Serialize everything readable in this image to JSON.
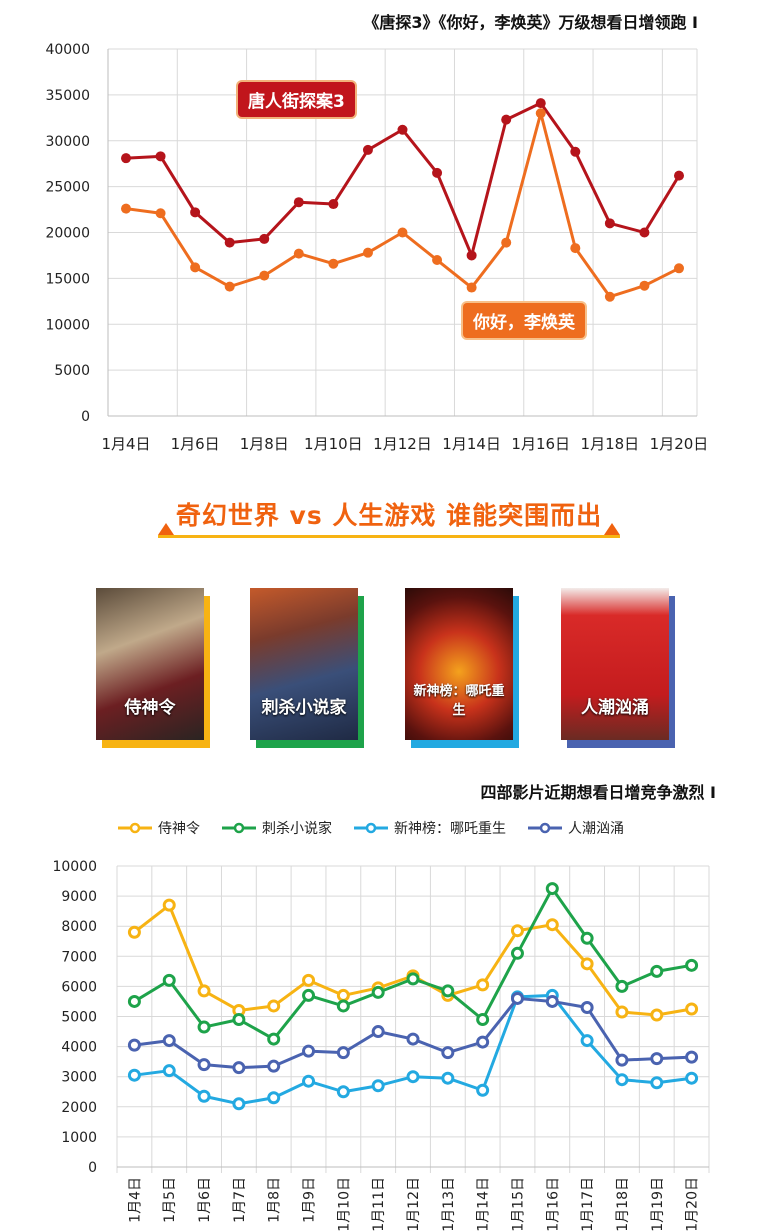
{
  "top": {
    "title": "《唐探3》《你好，李焕英》万级想看日增领跑 I",
    "chip_tang": "唐人街探案3",
    "chip_ni": "你好，李焕英"
  },
  "banner": {
    "text": "奇幻世界 vs 人生游戏 谁能突围而出",
    "accent": "#f0620f",
    "line_color": "#f7b313"
  },
  "posters": [
    {
      "name": "侍神令",
      "color": "#f7b313"
    },
    {
      "name": "刺杀小说家",
      "color": "#1ea34a"
    },
    {
      "name": "新神榜：哪吒重生",
      "color": "#23a9e1"
    },
    {
      "name": "人潮汹涌",
      "color": "#4a63b0"
    }
  ],
  "bottom": {
    "title": "四部影片近期想看日增竞争激烈 I"
  },
  "chart_data": [
    {
      "type": "line",
      "title": "《唐探3》《你好，李焕英》万级想看日增领跑 I",
      "x": [
        "1月4日",
        "1月5日",
        "1月6日",
        "1月7日",
        "1月8日",
        "1月9日",
        "1月10日",
        "1月11日",
        "1月12日",
        "1月13日",
        "1月14日",
        "1月15日",
        "1月16日",
        "1月17日",
        "1月18日",
        "1月19日",
        "1月20日"
      ],
      "x_tick_labels": [
        "1月4日",
        "1月6日",
        "1月8日",
        "1月10日",
        "1月12日",
        "1月14日",
        "1月16日",
        "1月18日",
        "1月20日"
      ],
      "ylim": [
        0,
        40000
      ],
      "yticks": [
        0,
        5000,
        10000,
        15000,
        20000,
        25000,
        30000,
        35000,
        40000
      ],
      "grid": true,
      "series": [
        {
          "name": "唐人街探案3",
          "color": "#b5141b",
          "values": [
            28100,
            28300,
            22200,
            18900,
            19300,
            23300,
            23100,
            29000,
            31200,
            26500,
            17500,
            32300,
            34100,
            28800,
            21000,
            20000,
            26200
          ]
        },
        {
          "name": "你好，李焕英",
          "color": "#ee6d1f",
          "values": [
            22600,
            22100,
            16200,
            14100,
            15300,
            17700,
            16600,
            17800,
            20000,
            17000,
            14000,
            18900,
            33000,
            18300,
            13000,
            14200,
            16100
          ]
        }
      ]
    },
    {
      "type": "line",
      "title": "四部影片近期想看日增竞争激烈 I",
      "x": [
        "1月4日",
        "1月5日",
        "1月6日",
        "1月7日",
        "1月8日",
        "1月9日",
        "1月10日",
        "1月11日",
        "1月12日",
        "1月13日",
        "1月14日",
        "1月15日",
        "1月16日",
        "1月17日",
        "1月18日",
        "1月19日",
        "1月20日"
      ],
      "ylim": [
        0,
        10000
      ],
      "yticks": [
        0,
        1000,
        2000,
        3000,
        4000,
        5000,
        6000,
        7000,
        8000,
        9000,
        10000
      ],
      "grid": true,
      "legend": "top-left",
      "series": [
        {
          "name": "侍神令",
          "color": "#f7b313",
          "values": [
            7800,
            8700,
            5850,
            5200,
            5350,
            6200,
            5700,
            5950,
            6350,
            5700,
            6050,
            7850,
            8050,
            6750,
            5150,
            5050,
            5250
          ]
        },
        {
          "name": "刺杀小说家",
          "color": "#1ea34a",
          "values": [
            5500,
            6200,
            4650,
            4900,
            4250,
            5700,
            5350,
            5800,
            6250,
            5850,
            4900,
            7100,
            9250,
            7600,
            6000,
            6500,
            6700
          ]
        },
        {
          "name": "新神榜：哪吒重生",
          "color": "#23a9e1",
          "values": [
            3050,
            3200,
            2350,
            2100,
            2300,
            2850,
            2500,
            2700,
            3000,
            2950,
            2550,
            5650,
            5700,
            4200,
            2900,
            2800,
            2950
          ]
        },
        {
          "name": "人潮汹涌",
          "color": "#4a63b0",
          "values": [
            4050,
            4200,
            3400,
            3300,
            3350,
            3850,
            3800,
            4500,
            4250,
            3800,
            4150,
            5600,
            5500,
            5300,
            3550,
            3600,
            3650
          ]
        }
      ]
    }
  ]
}
